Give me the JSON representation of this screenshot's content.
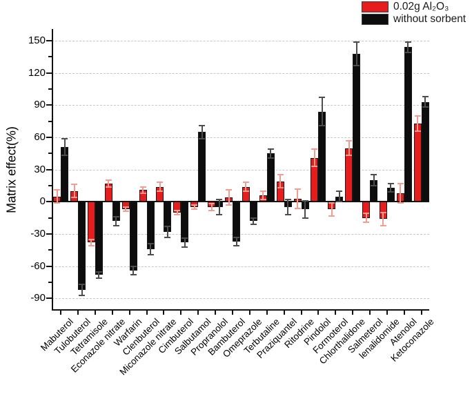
{
  "legend": {
    "items": [
      {
        "label": "0.02g Al₂O₃",
        "color": "#e61c1d"
      },
      {
        "label": "without sorbent",
        "color": "#0d0d0d"
      }
    ]
  },
  "y_axis": {
    "title": "Matrix effect(%)",
    "ticks": [
      150,
      120,
      90,
      60,
      30,
      0,
      -30,
      -60,
      -90
    ],
    "minor_ticks": [
      135,
      105,
      75,
      45,
      15,
      -15,
      -45,
      -75
    ]
  },
  "colors": {
    "accent_red": "#e61c1d",
    "bar_black": "#0d0d0d",
    "red_error": "#f49c90",
    "black_error": "#4d4d4d",
    "grid": "#c6c6c6"
  },
  "chart_data": {
    "type": "bar",
    "title": "",
    "xlabel": "",
    "ylabel": "Matrix effect(%)",
    "ylim": [
      -101.3,
      160.9
    ],
    "grid": "dashed-horizontal-major",
    "grid_values": [
      150,
      120,
      90,
      60,
      30,
      -30,
      -60,
      -90
    ],
    "legend_position": "top-right",
    "categories": [
      "Mabuterol",
      "Tulobuterol",
      "Tetramisole",
      "Econazole nitrate",
      "Warfarin",
      "Clenbuterol",
      "Miconazole nitrate",
      "Cimbuterol",
      "Salbutamol",
      "Propranolol",
      "Bambuterol",
      "Omeprazole",
      "Terbutaline",
      "Praziquantel",
      "Ritodrine",
      "Pindolol",
      "Formoterol",
      "Chlorthalidone",
      "Salmeterol",
      "lenalidomide",
      "Atenolol",
      "Ketoconazole"
    ],
    "series": [
      {
        "name": "0.02g Al₂O₃",
        "color": "#e61c1d",
        "error_color": "#f49c90",
        "values": [
          5,
          10,
          -38,
          17,
          -7,
          11,
          14,
          -10,
          -5,
          -5,
          4,
          14,
          6,
          19,
          3,
          41,
          -7,
          50,
          -15,
          -16,
          8,
          73
        ],
        "errors": [
          6,
          6,
          3,
          3,
          2,
          3,
          4,
          2,
          2,
          3,
          7,
          4,
          4,
          6,
          9,
          8,
          6,
          7,
          4,
          6,
          9,
          7
        ]
      },
      {
        "name": "without sorbent",
        "color": "#0d0d0d",
        "error_color": "#4d4d4d",
        "values": [
          51,
          -82,
          -68,
          -18,
          -64,
          -44,
          -28,
          -38,
          65,
          -5,
          -37,
          -18,
          45,
          -5,
          -7,
          84,
          5,
          138,
          20,
          13,
          144,
          93
        ],
        "errors": [
          8,
          5,
          3,
          4,
          4,
          5,
          5,
          4,
          6,
          7,
          4,
          3,
          4,
          7,
          8,
          13,
          5,
          11,
          5,
          4,
          5,
          5
        ]
      }
    ]
  }
}
